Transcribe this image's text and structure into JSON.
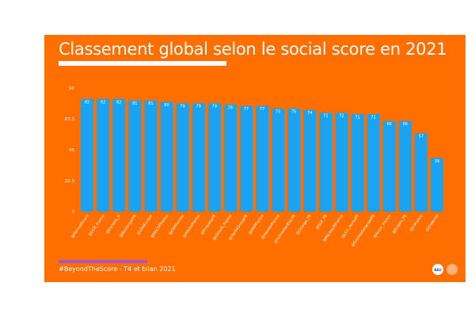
{
  "title": "Classement global selon le social score en 2021",
  "footer": "#BeyondTheScore - T4 et bilan 2021",
  "logos": {
    "left": "BAU",
    "right": ""
  },
  "colors": {
    "background": "#FF6E00",
    "bar": "#1AA3F0",
    "accent_line": "#A855C8",
    "text": "#ffffff"
  },
  "chart_data": {
    "type": "bar",
    "title": "Classement global selon le social score en 2021",
    "xlabel": "",
    "ylabel": "",
    "ylim": [
      0,
      90
    ],
    "yticks": [
      "0",
      "22,5",
      "45",
      "67,5",
      "90"
    ],
    "ytick_values": [
      0,
      22.5,
      45,
      67.5,
      90
    ],
    "grid": false,
    "categories": [
      "@PernodRicard",
      "@UCB_France",
      "@Danone_fr",
      "@BoulangerFR",
      "@LilleEurope",
      "@MACSFfrance",
      "@CNPFamille",
      "@AdobeFrance",
      "@EnqueteFR",
      "@Ubisoft_France",
      "@VeoliaGroupFR",
      "@BNPFrance",
      "@HeaderFrance",
      "@SchneiderElecFR",
      "@Orange_FR",
      "@SGF_FR",
      "@MicrosoftFrance",
      "@LEO_HomeFR",
      "@SocieteGeneraleFR",
      "@Accor_France",
      "@Ecodin_FR",
      "@CIFrance",
      "@Endemol"
    ],
    "values": [
      82,
      82,
      82,
      81,
      81,
      80,
      79,
      79,
      79,
      78,
      77,
      77,
      75,
      75,
      74,
      72,
      72,
      71,
      71,
      66,
      66,
      57,
      39
    ]
  }
}
